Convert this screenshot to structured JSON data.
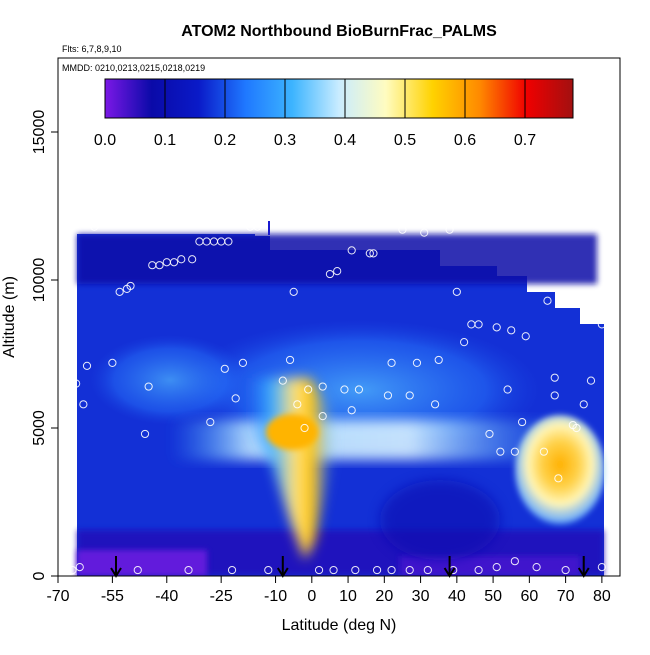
{
  "chart_data": {
    "type": "heatmap",
    "title": "ATOM2 Northbound BioBurnFrac_PALMS",
    "subtitle_flights": "Flts: 6,7,8,9,10",
    "subtitle_dates": "MMDD: 0210,0213,0215,0218,0219",
    "xlabel": "Latitude (deg N)",
    "ylabel": "Altitude (m)",
    "xlim": [
      -70,
      85
    ],
    "ylim": [
      0,
      17500
    ],
    "x_ticks": [
      -70,
      -55,
      -40,
      -25,
      -10,
      0,
      10,
      20,
      30,
      40,
      50,
      60,
      70,
      80
    ],
    "x_tick_labels": [
      "-70",
      "-55",
      "-40",
      "-25",
      "-10",
      "0",
      "10",
      "20",
      "30",
      "40",
      "50",
      "60",
      "70",
      "80"
    ],
    "y_ticks": [
      0,
      5000,
      10000,
      15000
    ],
    "y_tick_labels": [
      "0",
      "5000",
      "10000",
      "15000"
    ],
    "colorbar": {
      "min": 0.0,
      "max": 0.78,
      "ticks": [
        0.0,
        0.1,
        0.2,
        0.3,
        0.4,
        0.5,
        0.6,
        0.7
      ],
      "tick_labels": [
        "0.0",
        "0.1",
        "0.2",
        "0.3",
        "0.4",
        "0.5",
        "0.6",
        "0.7"
      ],
      "stops": [
        "#7b18e6",
        "#0a0aa8",
        "#0a1ac8",
        "#1f78ff",
        "#3cb4ff",
        "#c9ecff",
        "#fffcc0",
        "#ffd200",
        "#ff8a00",
        "#f00000",
        "#a21010"
      ]
    },
    "profile_latitudes": [
      -54,
      -8,
      38,
      75
    ],
    "observations": [
      {
        "lat": -69,
        "alt": 10050
      },
      {
        "lat": -68,
        "alt": 10600
      },
      {
        "lat": -68,
        "alt": 6300
      },
      {
        "lat": -67,
        "alt": 5000
      },
      {
        "lat": -66,
        "alt": 5600
      },
      {
        "lat": -65,
        "alt": 6500
      },
      {
        "lat": -63,
        "alt": 5800
      },
      {
        "lat": -62,
        "alt": 7100
      },
      {
        "lat": -60,
        "alt": 11800
      },
      {
        "lat": -59,
        "alt": 11900
      },
      {
        "lat": -55,
        "alt": 7200
      },
      {
        "lat": -53,
        "alt": 9600
      },
      {
        "lat": -51,
        "alt": 9700
      },
      {
        "lat": -50,
        "alt": 9800
      },
      {
        "lat": -46,
        "alt": 4800
      },
      {
        "lat": -45,
        "alt": 6400
      },
      {
        "lat": -44,
        "alt": 10500
      },
      {
        "lat": -42,
        "alt": 10500
      },
      {
        "lat": -40,
        "alt": 10600
      },
      {
        "lat": -38,
        "alt": 10600
      },
      {
        "lat": -36,
        "alt": 10700
      },
      {
        "lat": -33,
        "alt": 10700
      },
      {
        "lat": -31,
        "alt": 11300
      },
      {
        "lat": -29,
        "alt": 11300
      },
      {
        "lat": -27,
        "alt": 11300
      },
      {
        "lat": -25,
        "alt": 11300
      },
      {
        "lat": -23,
        "alt": 11300
      },
      {
        "lat": -28,
        "alt": 5200
      },
      {
        "lat": -24,
        "alt": 7000
      },
      {
        "lat": -21,
        "alt": 6000
      },
      {
        "lat": -19,
        "alt": 7200
      },
      {
        "lat": -17,
        "alt": 11800
      },
      {
        "lat": -15,
        "alt": 11800
      },
      {
        "lat": -8,
        "alt": 6600
      },
      {
        "lat": -6,
        "alt": 7300
      },
      {
        "lat": -5,
        "alt": 9600
      },
      {
        "lat": -4,
        "alt": 5800
      },
      {
        "lat": -2,
        "alt": 5000
      },
      {
        "lat": -1,
        "alt": 6300
      },
      {
        "lat": 3,
        "alt": 6400
      },
      {
        "lat": 3,
        "alt": 5400
      },
      {
        "lat": 5,
        "alt": 10200
      },
      {
        "lat": 7,
        "alt": 10300
      },
      {
        "lat": 9,
        "alt": 6300
      },
      {
        "lat": 11,
        "alt": 5600
      },
      {
        "lat": 11,
        "alt": 11000
      },
      {
        "lat": 13,
        "alt": 6300
      },
      {
        "lat": 16,
        "alt": 10900
      },
      {
        "lat": 17,
        "alt": 10900
      },
      {
        "lat": 21,
        "alt": 6100
      },
      {
        "lat": 22,
        "alt": 7200
      },
      {
        "lat": 25,
        "alt": 11700
      },
      {
        "lat": 27,
        "alt": 6100
      },
      {
        "lat": 29,
        "alt": 7200
      },
      {
        "lat": 31,
        "alt": 11600
      },
      {
        "lat": 34,
        "alt": 5800
      },
      {
        "lat": 35,
        "alt": 7300
      },
      {
        "lat": 38,
        "alt": 11700
      },
      {
        "lat": 40,
        "alt": 9600
      },
      {
        "lat": 42,
        "alt": 7900
      },
      {
        "lat": 44,
        "alt": 8500
      },
      {
        "lat": 46,
        "alt": 8500
      },
      {
        "lat": 49,
        "alt": 4800
      },
      {
        "lat": 51,
        "alt": 8400
      },
      {
        "lat": 52,
        "alt": 4200
      },
      {
        "lat": 54,
        "alt": 6300
      },
      {
        "lat": 55,
        "alt": 8300
      },
      {
        "lat": 56,
        "alt": 4200
      },
      {
        "lat": 58,
        "alt": 5200
      },
      {
        "lat": 59,
        "alt": 8100
      },
      {
        "lat": 64,
        "alt": 4200
      },
      {
        "lat": 65,
        "alt": 9300
      },
      {
        "lat": 67,
        "alt": 6100
      },
      {
        "lat": 67,
        "alt": 6700
      },
      {
        "lat": 68,
        "alt": 3300
      },
      {
        "lat": 70,
        "alt": 9300
      },
      {
        "lat": 72,
        "alt": 5100
      },
      {
        "lat": 73,
        "alt": 5000
      },
      {
        "lat": 75,
        "alt": 5800
      },
      {
        "lat": 77,
        "alt": 6600
      },
      {
        "lat": 80,
        "alt": 8500
      },
      {
        "lat": -68,
        "alt": 200
      },
      {
        "lat": -66,
        "alt": 200
      },
      {
        "lat": -64,
        "alt": 300
      },
      {
        "lat": -48,
        "alt": 200
      },
      {
        "lat": -34,
        "alt": 200
      },
      {
        "lat": -22,
        "alt": 200
      },
      {
        "lat": -12,
        "alt": 200
      },
      {
        "lat": 2,
        "alt": 200
      },
      {
        "lat": 6,
        "alt": 200
      },
      {
        "lat": 12,
        "alt": 200
      },
      {
        "lat": 18,
        "alt": 200
      },
      {
        "lat": 22,
        "alt": 200
      },
      {
        "lat": 27,
        "alt": 200
      },
      {
        "lat": 32,
        "alt": 200
      },
      {
        "lat": 39,
        "alt": 200
      },
      {
        "lat": 46,
        "alt": 200
      },
      {
        "lat": 51,
        "alt": 300
      },
      {
        "lat": 56,
        "alt": 500
      },
      {
        "lat": 62,
        "alt": 300
      },
      {
        "lat": 70,
        "alt": 200
      },
      {
        "lat": 80,
        "alt": 300
      }
    ]
  }
}
